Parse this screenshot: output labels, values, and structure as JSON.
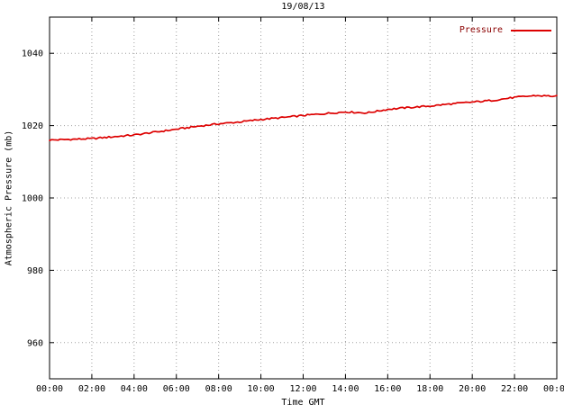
{
  "chart_data": {
    "type": "line",
    "title": "19/08/13",
    "xlabel": "Time GMT",
    "ylabel": "Atmospheric Pressure (mb)",
    "legend": [
      {
        "name": "Pressure",
        "color": "#dd0000"
      }
    ],
    "legend_position": "top-right",
    "grid": true,
    "xlim_hours": [
      0,
      24
    ],
    "ylim": [
      950,
      1050
    ],
    "x_tick_hours": [
      0,
      2,
      4,
      6,
      8,
      10,
      12,
      14,
      16,
      18,
      20,
      22,
      24
    ],
    "x_tick_labels": [
      "00:00",
      "02:00",
      "04:00",
      "06:00",
      "08:00",
      "10:00",
      "12:00",
      "14:00",
      "16:00",
      "18:00",
      "20:00",
      "22:00",
      "00:00"
    ],
    "y_ticks": [
      960,
      980,
      1000,
      1020,
      1040
    ],
    "series": [
      {
        "name": "Pressure",
        "x_hours": [
          0,
          1,
          2,
          3,
          4,
          5,
          6,
          7,
          8,
          9,
          10,
          11,
          12,
          13,
          14,
          15,
          16,
          17,
          18,
          19,
          20,
          21,
          22,
          23,
          24
        ],
        "values": [
          1016.0,
          1016.2,
          1016.4,
          1016.9,
          1017.4,
          1018.2,
          1019.0,
          1019.8,
          1020.5,
          1021.0,
          1021.7,
          1022.2,
          1022.8,
          1023.3,
          1023.8,
          1023.5,
          1024.5,
          1025.0,
          1025.4,
          1026.0,
          1026.5,
          1027.0,
          1027.8,
          1028.3,
          1028.1
        ]
      }
    ],
    "noise_amplitude_mb": 0.22
  },
  "colors": {
    "line": "#dd0000",
    "grid": "#a0a0a0",
    "axis": "#000000",
    "legend_text": "#8b0000",
    "background": "#ffffff"
  }
}
